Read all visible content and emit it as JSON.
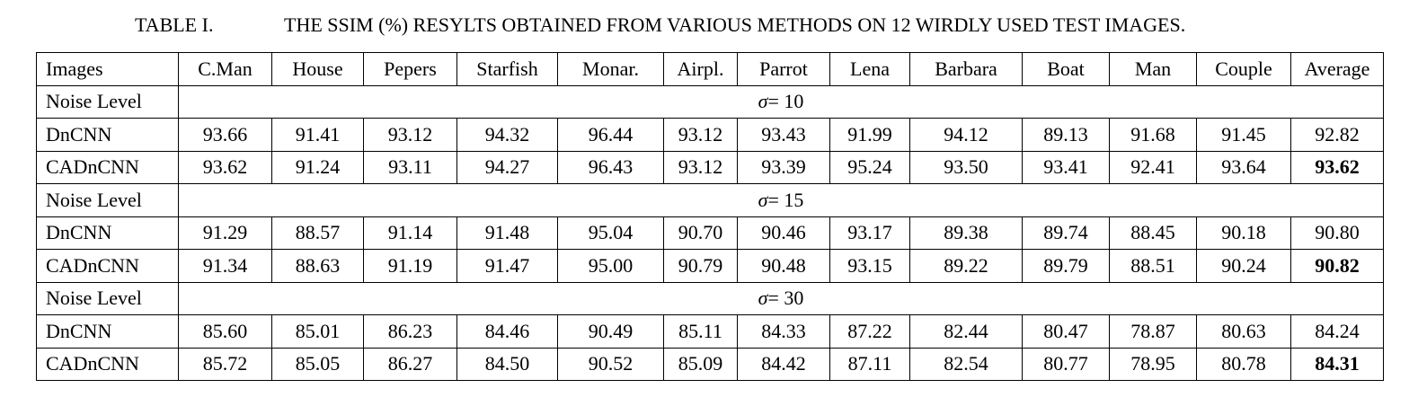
{
  "caption": {
    "label": "TABLE I.",
    "text": "THE SSIM (%) RESYLTS OBTAINED FROM VARIOUS METHODS ON 12 WIRDLY USED TEST IMAGES."
  },
  "header": [
    "Images",
    "C.Man",
    "House",
    "Pepers",
    "Starfish",
    "Monar.",
    "Airpl.",
    "Parrot",
    "Lena",
    "Barbara",
    "Boat",
    "Man",
    "Couple",
    "Average"
  ],
  "groups": [
    {
      "label": "Noise Level",
      "sigma_symbol": "σ",
      "sigma_value": "= 10",
      "rows": [
        {
          "method": "DnCNN",
          "values": [
            "93.66",
            "91.41",
            "93.12",
            "94.32",
            "96.44",
            "93.12",
            "93.43",
            "91.99",
            "94.12",
            "89.13",
            "91.68",
            "91.45",
            "92.82"
          ]
        },
        {
          "method": "CADnCNN",
          "values": [
            "93.62",
            "91.24",
            "93.11",
            "94.27",
            "96.43",
            "93.12",
            "93.39",
            "95.24",
            "93.50",
            "93.41",
            "92.41",
            "93.64",
            "93.62"
          ]
        }
      ]
    },
    {
      "label": "Noise Level",
      "sigma_symbol": "σ",
      "sigma_value": "= 15",
      "rows": [
        {
          "method": "DnCNN",
          "values": [
            "91.29",
            "88.57",
            "91.14",
            "91.48",
            "95.04",
            "90.70",
            "90.46",
            "93.17",
            "89.38",
            "89.74",
            "88.45",
            "90.18",
            "90.80"
          ]
        },
        {
          "method": "CADnCNN",
          "values": [
            "91.34",
            "88.63",
            "91.19",
            "91.47",
            "95.00",
            "90.79",
            "90.48",
            "93.15",
            "89.22",
            "89.79",
            "88.51",
            "90.24",
            "90.82"
          ]
        }
      ]
    },
    {
      "label": "Noise Level",
      "sigma_symbol": "σ",
      "sigma_value": "= 30",
      "rows": [
        {
          "method": "DnCNN",
          "values": [
            "85.60",
            "85.01",
            "86.23",
            "84.46",
            "90.49",
            "85.11",
            "84.33",
            "87.22",
            "82.44",
            "80.47",
            "78.87",
            "80.63",
            "84.24"
          ]
        },
        {
          "method": "CADnCNN",
          "values": [
            "85.72",
            "85.05",
            "86.27",
            "84.50",
            "90.52",
            "85.09",
            "84.42",
            "87.11",
            "82.54",
            "80.77",
            "78.95",
            "80.78",
            "84.31"
          ]
        }
      ]
    }
  ]
}
